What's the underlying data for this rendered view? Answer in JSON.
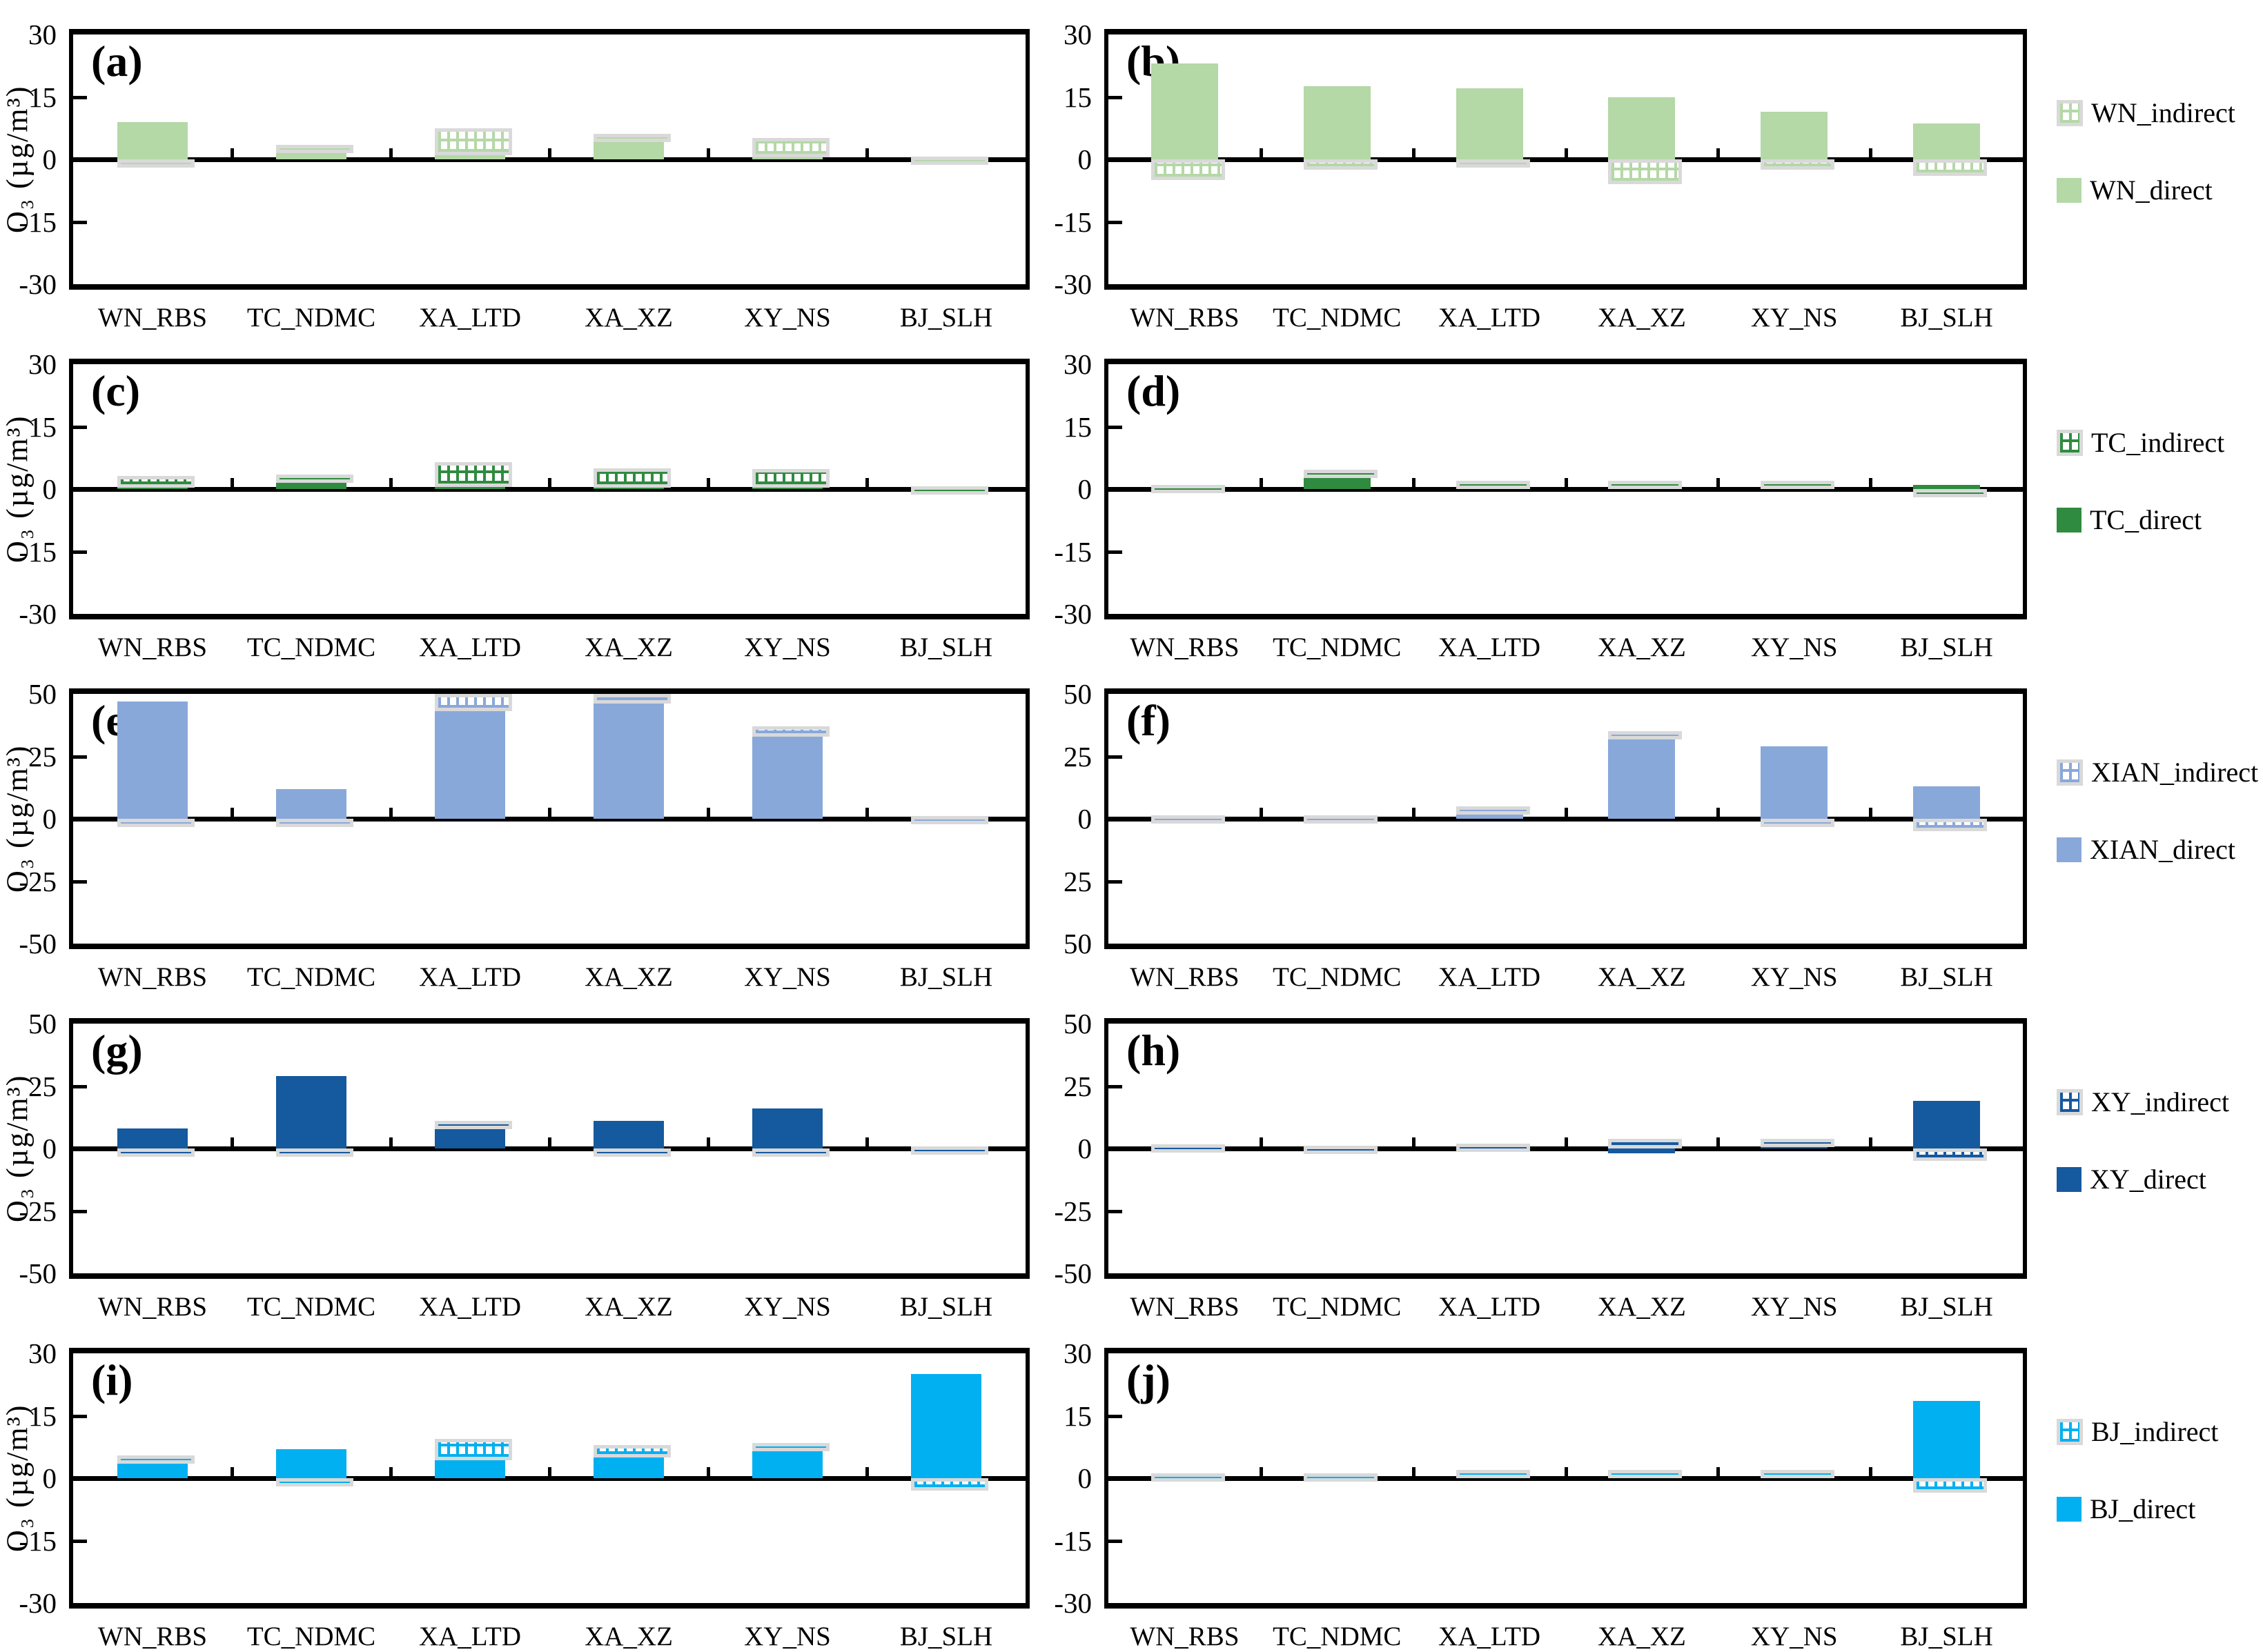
{
  "figure": {
    "ylabel": "O₃ (µg/m³)",
    "categories": [
      "WN_RBS",
      "TC_NDMC",
      "XA_LTD",
      "XA_XZ",
      "XY_NS",
      "BJ_SLH"
    ],
    "colors": {
      "WN": "#b4d8a6",
      "TC": "#2f8b3f",
      "XIAN": "#89a8da",
      "XY": "#15599e",
      "BJ": "#00b0f0",
      "hatch_border": "#d9d9d9",
      "axis": "#000000"
    }
  },
  "legends": [
    {
      "source": "WN",
      "indirect_label": "WN_indirect",
      "direct_label": "WN_direct"
    },
    {
      "source": "TC",
      "indirect_label": "TC_indirect",
      "direct_label": "TC_direct"
    },
    {
      "source": "XIAN",
      "indirect_label": "XIAN_indirect",
      "direct_label": "XIAN_direct"
    },
    {
      "source": "XY",
      "indirect_label": "XY_indirect",
      "direct_label": "XY_direct"
    },
    {
      "source": "BJ",
      "indirect_label": "BJ_indirect",
      "direct_label": "BJ_direct"
    }
  ],
  "chart_data": [
    {
      "id": "a",
      "label": "(a)",
      "type": "bar",
      "source": "WN",
      "ylim": [
        -30,
        30
      ],
      "yticks": [
        "30",
        "15",
        "0",
        "-15",
        "-30"
      ],
      "categories": [
        "WN_RBS",
        "TC_NDMC",
        "XA_LTD",
        "XA_XZ",
        "XY_NS",
        "BJ_SLH"
      ],
      "series": [
        {
          "name": "WN_direct",
          "values": [
            9,
            2.5,
            1,
            5.2,
            0.5,
            0.1
          ]
        },
        {
          "name": "WN_indirect",
          "values": [
            -1.3,
            1,
            6.5,
            1,
            4.7,
            0.6
          ]
        }
      ]
    },
    {
      "id": "b",
      "label": "(b)",
      "type": "bar",
      "source": "WN",
      "ylim": [
        -30,
        30
      ],
      "yticks": [
        "30",
        "15",
        "0",
        "-15",
        "-30"
      ],
      "categories": [
        "WN_RBS",
        "TC_NDMC",
        "XA_LTD",
        "XA_XZ",
        "XY_NS",
        "BJ_SLH"
      ],
      "series": [
        {
          "name": "WN_direct",
          "values": [
            23,
            17.5,
            17,
            15,
            11.5,
            8.7
          ]
        },
        {
          "name": "WN_indirect",
          "values": [
            -5,
            -2.5,
            -2,
            -6,
            -2.5,
            -4
          ]
        }
      ]
    },
    {
      "id": "c",
      "label": "(c)",
      "type": "bar",
      "source": "TC",
      "ylim": [
        -30,
        30
      ],
      "yticks": [
        "30",
        "15",
        "0",
        "-15",
        "-30"
      ],
      "categories": [
        "WN_RBS",
        "TC_NDMC",
        "XA_LTD",
        "XA_XZ",
        "XY_NS",
        "BJ_SLH"
      ],
      "series": [
        {
          "name": "TC_direct",
          "values": [
            0.3,
            2,
            0.5,
            0.3,
            0.3,
            0.1
          ]
        },
        {
          "name": "TC_indirect",
          "values": [
            2.9,
            1.5,
            6,
            4.7,
            4.5,
            0.6
          ]
        }
      ]
    },
    {
      "id": "d",
      "label": "(d)",
      "type": "bar",
      "source": "TC",
      "ylim": [
        -30,
        30
      ],
      "yticks": [
        "30",
        "15",
        "0",
        "-15",
        "-30"
      ],
      "categories": [
        "WN_RBS",
        "TC_NDMC",
        "XA_LTD",
        "XA_XZ",
        "XY_NS",
        "BJ_SLH"
      ],
      "series": [
        {
          "name": "TC_direct",
          "values": [
            0.2,
            4,
            0.3,
            0.3,
            0.3,
            1
          ]
        },
        {
          "name": "TC_indirect",
          "values": [
            0.8,
            0.7,
            1.7,
            1.7,
            1.7,
            -1
          ]
        }
      ]
    },
    {
      "id": "e",
      "label": "(e)",
      "type": "bar",
      "source": "XIAN",
      "ylim": [
        -50,
        50
      ],
      "yticks": [
        "50",
        "25",
        "0",
        "-25",
        "-50"
      ],
      "categories": [
        "WN_RBS",
        "TC_NDMC",
        "XA_LTD",
        "XA_XZ",
        "XY_NS",
        "BJ_SLH"
      ],
      "series": [
        {
          "name": "XIAN_direct",
          "values": [
            47,
            12,
            43,
            46,
            33,
            0.4
          ]
        },
        {
          "name": "XIAN_indirect",
          "values": [
            -1.5,
            -3,
            7,
            4,
            4,
            0.6
          ]
        }
      ]
    },
    {
      "id": "f",
      "label": "(f)",
      "type": "bar",
      "source": "XIAN",
      "ylim": [
        -50,
        50
      ],
      "yticks": [
        "50",
        "25",
        "0",
        "25",
        "50"
      ],
      "categories": [
        "WN_RBS",
        "TC_NDMC",
        "XA_LTD",
        "XA_XZ",
        "XY_NS",
        "BJ_SLH"
      ],
      "series": [
        {
          "name": "XIAN_direct",
          "values": [
            0.3,
            0.3,
            3,
            33,
            29,
            13
          ]
        },
        {
          "name": "XIAN_indirect",
          "values": [
            1.2,
            1,
            2,
            2,
            -2,
            -5
          ]
        }
      ]
    },
    {
      "id": "g",
      "label": "(g)",
      "type": "bar",
      "source": "XY",
      "ylim": [
        -50,
        50
      ],
      "yticks": [
        "50",
        "25",
        "0",
        "-25",
        "-50"
      ],
      "categories": [
        "WN_RBS",
        "TC_NDMC",
        "XA_LTD",
        "XA_XZ",
        "XY_NS",
        "BJ_SLH"
      ],
      "series": [
        {
          "name": "XY_direct",
          "values": [
            8,
            29,
            8,
            11,
            16,
            0.3
          ]
        },
        {
          "name": "XY_indirect",
          "values": [
            -1.2,
            -3,
            3,
            -1.5,
            -1.5,
            0.5
          ]
        }
      ]
    },
    {
      "id": "h",
      "label": "(h)",
      "type": "bar",
      "source": "XY",
      "ylim": [
        -50,
        50
      ],
      "yticks": [
        "50",
        "25",
        "0",
        "-25",
        "-50"
      ],
      "categories": [
        "WN_RBS",
        "TC_NDMC",
        "XA_LTD",
        "XA_XZ",
        "XY_NS",
        "BJ_SLH"
      ],
      "series": [
        {
          "name": "XY_direct",
          "values": [
            0.3,
            0.2,
            0.3,
            -2,
            2,
            19
          ]
        },
        {
          "name": "XY_indirect",
          "values": [
            1.3,
            0.9,
            1.7,
            4,
            2,
            -5
          ]
        }
      ]
    },
    {
      "id": "i",
      "label": "(i)",
      "type": "bar",
      "source": "BJ",
      "ylim": [
        -30,
        30
      ],
      "yticks": [
        "30",
        "15",
        "0",
        "-15",
        "-30"
      ],
      "categories": [
        "WN_RBS",
        "TC_NDMC",
        "XA_LTD",
        "XA_XZ",
        "XY_NS",
        "BJ_SLH"
      ],
      "series": [
        {
          "name": "BJ_direct",
          "values": [
            4,
            7,
            4.3,
            5,
            6.8,
            25
          ]
        },
        {
          "name": "BJ_indirect",
          "values": [
            1.5,
            -1.5,
            5.2,
            3,
            1.7,
            -3
          ]
        }
      ]
    },
    {
      "id": "j",
      "label": "(j)",
      "type": "bar",
      "source": "BJ",
      "ylim": [
        -30,
        30
      ],
      "yticks": [
        "30",
        "15",
        "0",
        "-15",
        "-30"
      ],
      "categories": [
        "WN_RBS",
        "TC_NDMC",
        "XA_LTD",
        "XA_XZ",
        "XY_NS",
        "BJ_SLH"
      ],
      "series": [
        {
          "name": "BJ_direct",
          "values": [
            0.2,
            0.2,
            0.3,
            0.3,
            0.3,
            18.5
          ]
        },
        {
          "name": "BJ_indirect",
          "values": [
            1,
            1,
            1.7,
            1.7,
            1.7,
            -3.5
          ]
        }
      ]
    }
  ]
}
